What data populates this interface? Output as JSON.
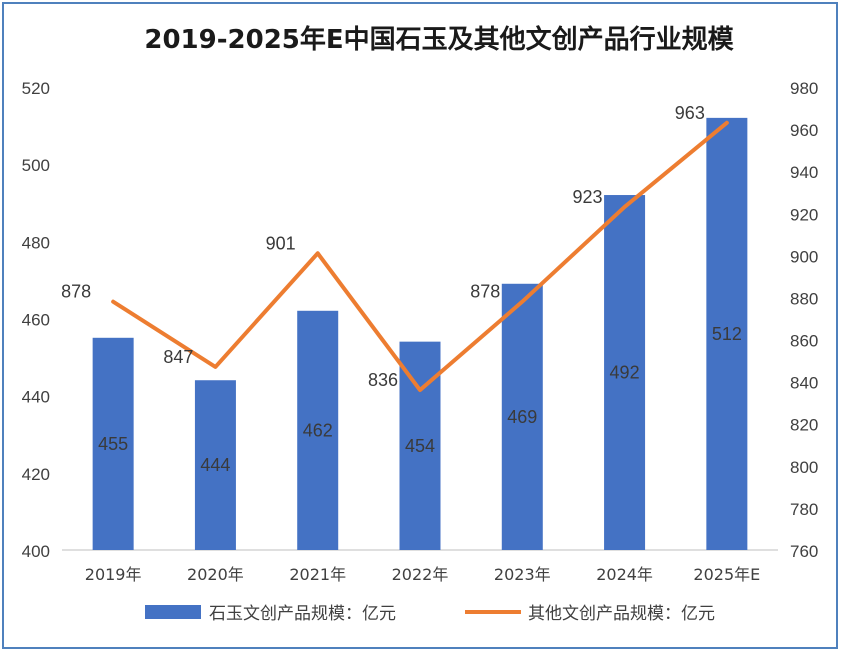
{
  "chart_data": {
    "type": "bar+line",
    "title": "2019-2025年E中国石玉及其他文创产品行业规模",
    "categories": [
      "2019年",
      "2020年",
      "2021年",
      "2022年",
      "2023年",
      "2024年",
      "2025年E"
    ],
    "series": [
      {
        "name": "石玉文创产品规模：亿元",
        "type": "bar",
        "axis": "left",
        "color": "#4472c4",
        "values": [
          455,
          444,
          462,
          454,
          469,
          492,
          512
        ]
      },
      {
        "name": "其他文创产品规模：亿元",
        "type": "line",
        "axis": "right",
        "color": "#ed7d31",
        "values": [
          878,
          847,
          901,
          836,
          878,
          923,
          963
        ]
      }
    ],
    "y_left": {
      "min": 400,
      "max": 520,
      "step": 20,
      "ticks": [
        "400",
        "420",
        "440",
        "460",
        "480",
        "500",
        "520"
      ]
    },
    "y_right": {
      "min": 760,
      "max": 980,
      "step": 20,
      "ticks": [
        "760",
        "780",
        "800",
        "820",
        "840",
        "860",
        "880",
        "900",
        "920",
        "940",
        "960",
        "980"
      ]
    },
    "grid": false,
    "legend": "bottom"
  }
}
